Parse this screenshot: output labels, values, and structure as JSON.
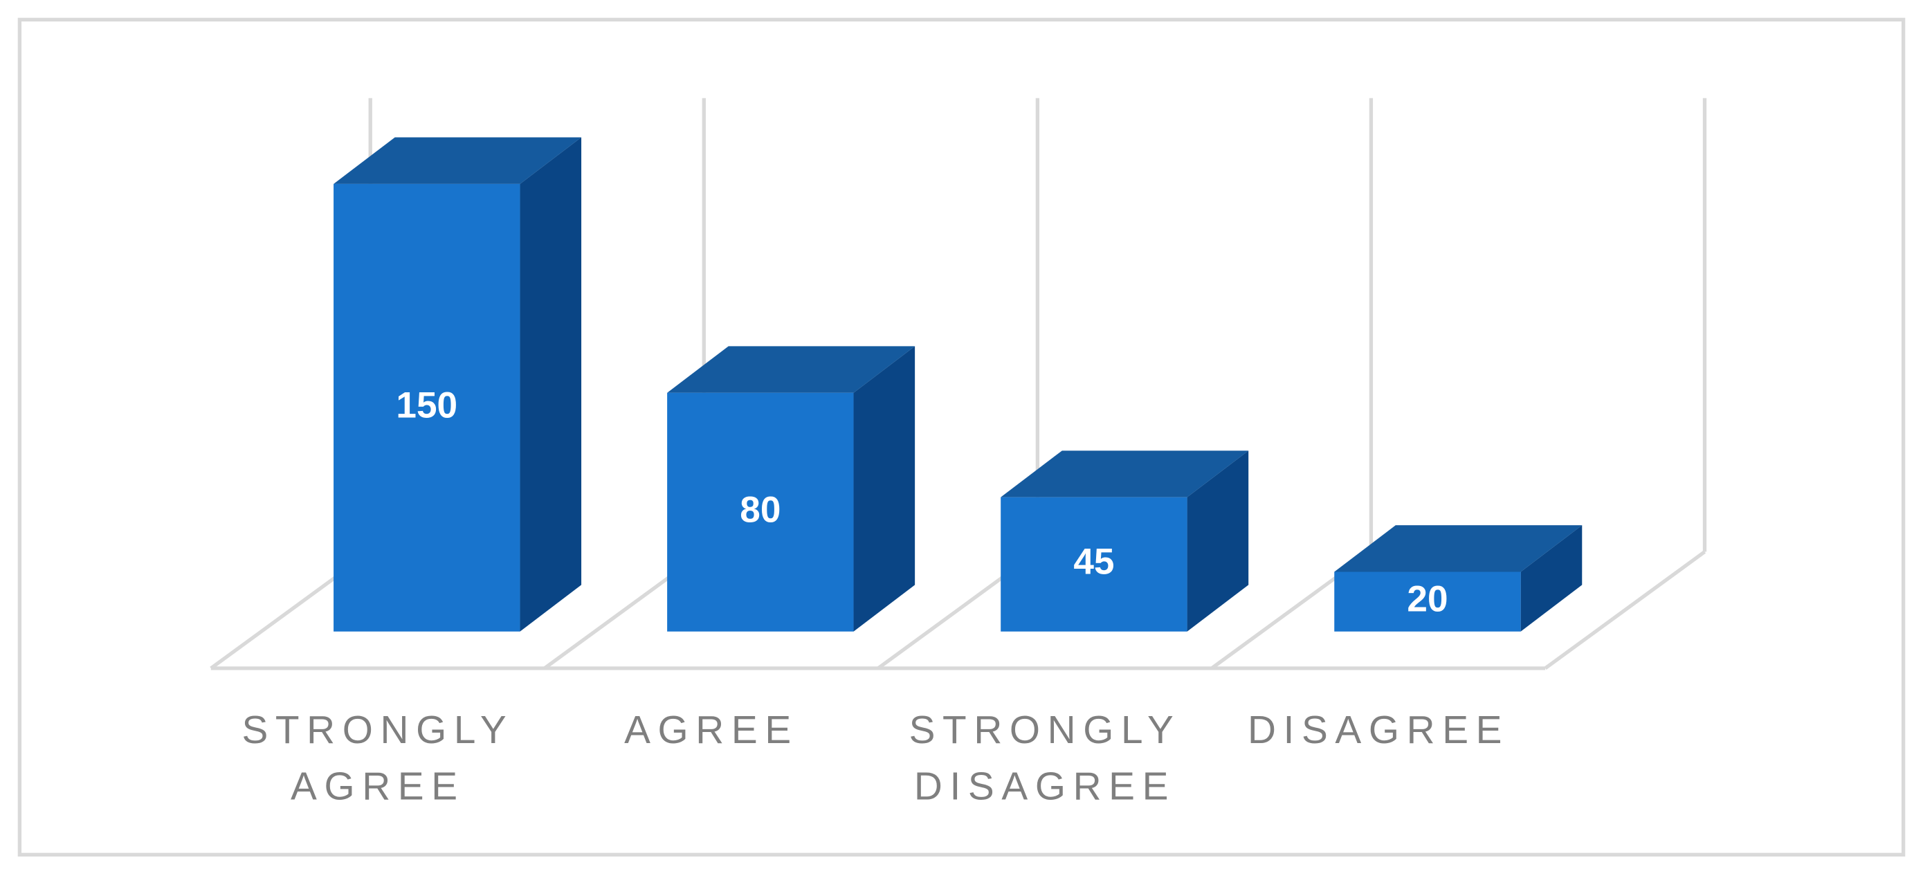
{
  "chart_data": {
    "type": "bar3d",
    "categories": [
      "STRONGLY AGREE",
      "AGREE",
      "STRONGLY DISAGREE",
      "DISAGREE"
    ],
    "values": [
      150,
      80,
      45,
      20
    ],
    "color": "#1874cd",
    "data_labels": true
  }
}
